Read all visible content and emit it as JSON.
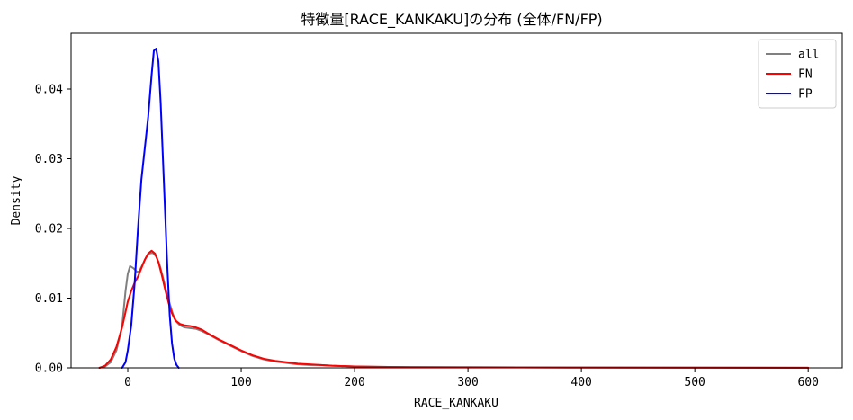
{
  "chart_data": {
    "type": "line",
    "title": "特徴量[RACE_KANKAKU]の分布 (全体/FN/FP)",
    "xlabel": "RACE_KANKAKU",
    "ylabel": "Density",
    "xlim": [
      -50,
      630
    ],
    "ylim": [
      0,
      0.048
    ],
    "x_ticks": [
      0,
      100,
      200,
      300,
      400,
      500,
      600
    ],
    "x_tick_labels": [
      "0",
      "100",
      "200",
      "300",
      "400",
      "500",
      "600"
    ],
    "y_ticks": [
      0,
      0.01,
      0.02,
      0.03,
      0.04
    ],
    "y_tick_labels": [
      "0.00",
      "0.01",
      "0.02",
      "0.03",
      "0.04"
    ],
    "grid": false,
    "legend": {
      "position": "top-right"
    },
    "series": [
      {
        "name": "all",
        "color": "#808080",
        "points": [
          [
            -25,
            0.0
          ],
          [
            -20,
            0.0002
          ],
          [
            -15,
            0.0008
          ],
          [
            -10,
            0.0025
          ],
          [
            -5,
            0.006
          ],
          [
            -2,
            0.011
          ],
          [
            0,
            0.0135
          ],
          [
            2,
            0.0146
          ],
          [
            5,
            0.0143
          ],
          [
            8,
            0.0138
          ],
          [
            10,
            0.0138
          ],
          [
            13,
            0.0148
          ],
          [
            16,
            0.0158
          ],
          [
            19,
            0.0164
          ],
          [
            22,
            0.0165
          ],
          [
            25,
            0.016
          ],
          [
            28,
            0.0148
          ],
          [
            31,
            0.013
          ],
          [
            34,
            0.011
          ],
          [
            37,
            0.0092
          ],
          [
            40,
            0.0076
          ],
          [
            43,
            0.0066
          ],
          [
            46,
            0.0061
          ],
          [
            50,
            0.0058
          ],
          [
            55,
            0.0057
          ],
          [
            60,
            0.0056
          ],
          [
            65,
            0.0053
          ],
          [
            70,
            0.0049
          ],
          [
            80,
            0.004
          ],
          [
            90,
            0.0032
          ],
          [
            100,
            0.0024
          ],
          [
            110,
            0.0017
          ],
          [
            120,
            0.0012
          ],
          [
            130,
            0.0009
          ],
          [
            140,
            0.0007
          ],
          [
            150,
            0.0005
          ],
          [
            160,
            0.0004
          ],
          [
            170,
            0.0004
          ],
          [
            180,
            0.0003
          ],
          [
            200,
            0.0002
          ],
          [
            220,
            0.00015
          ],
          [
            250,
            0.0001
          ],
          [
            300,
            8e-05
          ],
          [
            400,
            5e-05
          ],
          [
            500,
            3e-05
          ],
          [
            600,
            1e-05
          ]
        ]
      },
      {
        "name": "FN",
        "color": "#ff0000",
        "points": [
          [
            -25,
            0.0
          ],
          [
            -20,
            0.0003
          ],
          [
            -15,
            0.0012
          ],
          [
            -10,
            0.003
          ],
          [
            -5,
            0.0058
          ],
          [
            -2,
            0.008
          ],
          [
            0,
            0.0095
          ],
          [
            3,
            0.011
          ],
          [
            6,
            0.0122
          ],
          [
            9,
            0.0131
          ],
          [
            12,
            0.0143
          ],
          [
            15,
            0.0155
          ],
          [
            18,
            0.0164
          ],
          [
            21,
            0.0168
          ],
          [
            24,
            0.0164
          ],
          [
            27,
            0.0152
          ],
          [
            30,
            0.0133
          ],
          [
            33,
            0.0112
          ],
          [
            36,
            0.0093
          ],
          [
            39,
            0.0078
          ],
          [
            42,
            0.0068
          ],
          [
            46,
            0.0063
          ],
          [
            50,
            0.0061
          ],
          [
            55,
            0.006
          ],
          [
            60,
            0.0058
          ],
          [
            65,
            0.0055
          ],
          [
            70,
            0.005
          ],
          [
            80,
            0.0041
          ],
          [
            90,
            0.0033
          ],
          [
            100,
            0.0025
          ],
          [
            110,
            0.0018
          ],
          [
            120,
            0.0013
          ],
          [
            130,
            0.001
          ],
          [
            140,
            0.0008
          ],
          [
            150,
            0.0006
          ],
          [
            160,
            0.0005
          ],
          [
            170,
            0.0004
          ],
          [
            180,
            0.0003
          ],
          [
            200,
            0.0002
          ],
          [
            220,
            0.00015
          ],
          [
            250,
            0.0001
          ],
          [
            300,
            8e-05
          ],
          [
            400,
            5e-05
          ],
          [
            500,
            3e-05
          ],
          [
            600,
            1e-05
          ]
        ]
      },
      {
        "name": "FP",
        "color": "#0000ff",
        "points": [
          [
            -5,
            0.0
          ],
          [
            -2,
            0.0008
          ],
          [
            0,
            0.0025
          ],
          [
            3,
            0.006
          ],
          [
            6,
            0.012
          ],
          [
            9,
            0.02
          ],
          [
            12,
            0.027
          ],
          [
            15,
            0.0315
          ],
          [
            18,
            0.036
          ],
          [
            21,
            0.042
          ],
          [
            23,
            0.0455
          ],
          [
            25,
            0.0458
          ],
          [
            27,
            0.044
          ],
          [
            29,
            0.038
          ],
          [
            31,
            0.03
          ],
          [
            33,
            0.022
          ],
          [
            35,
            0.014
          ],
          [
            37,
            0.0075
          ],
          [
            39,
            0.0035
          ],
          [
            41,
            0.0013
          ],
          [
            43,
            0.0004
          ],
          [
            45,
            0.0
          ]
        ]
      }
    ]
  }
}
